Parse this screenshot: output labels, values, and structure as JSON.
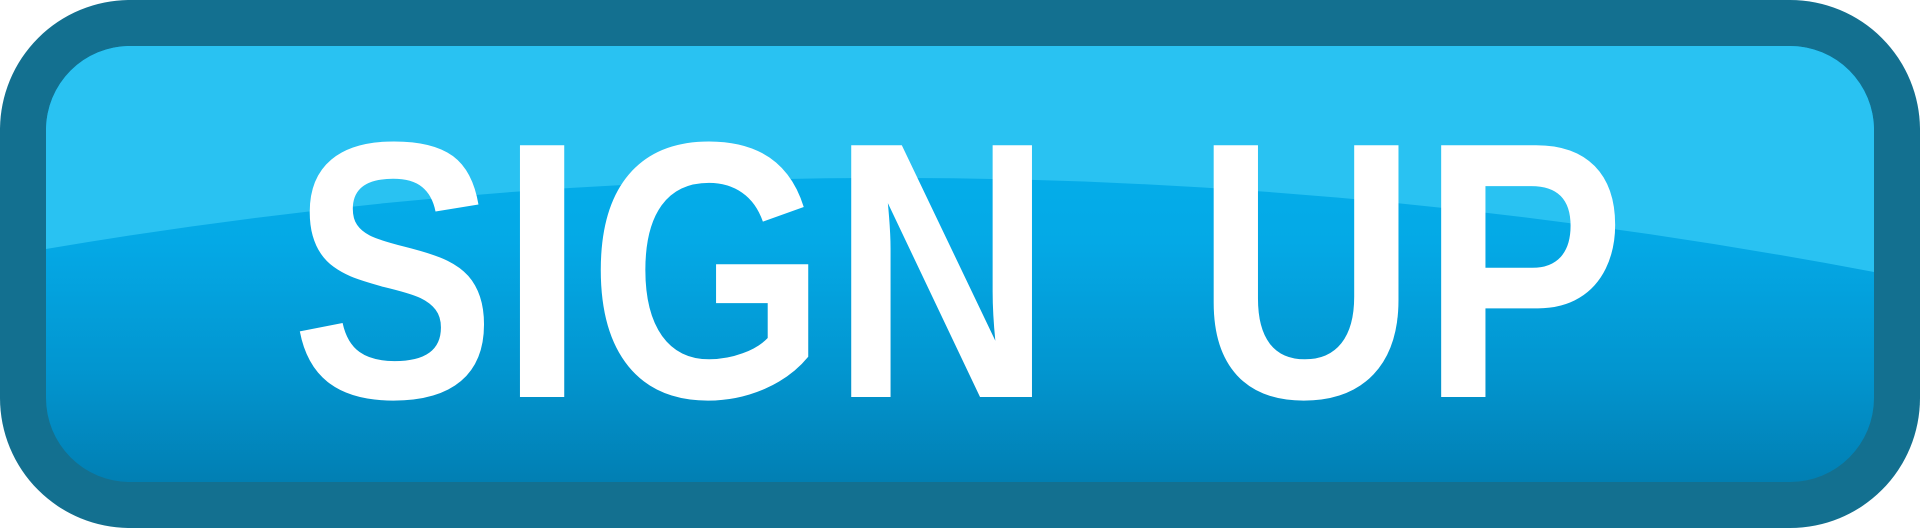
{
  "button": {
    "label": "SIGN UP"
  },
  "colors": {
    "border": "#137090",
    "fill_top": "#05b4f0",
    "fill_bottom": "#017fb3",
    "gloss": "#29c2f2",
    "text": "#ffffff"
  }
}
